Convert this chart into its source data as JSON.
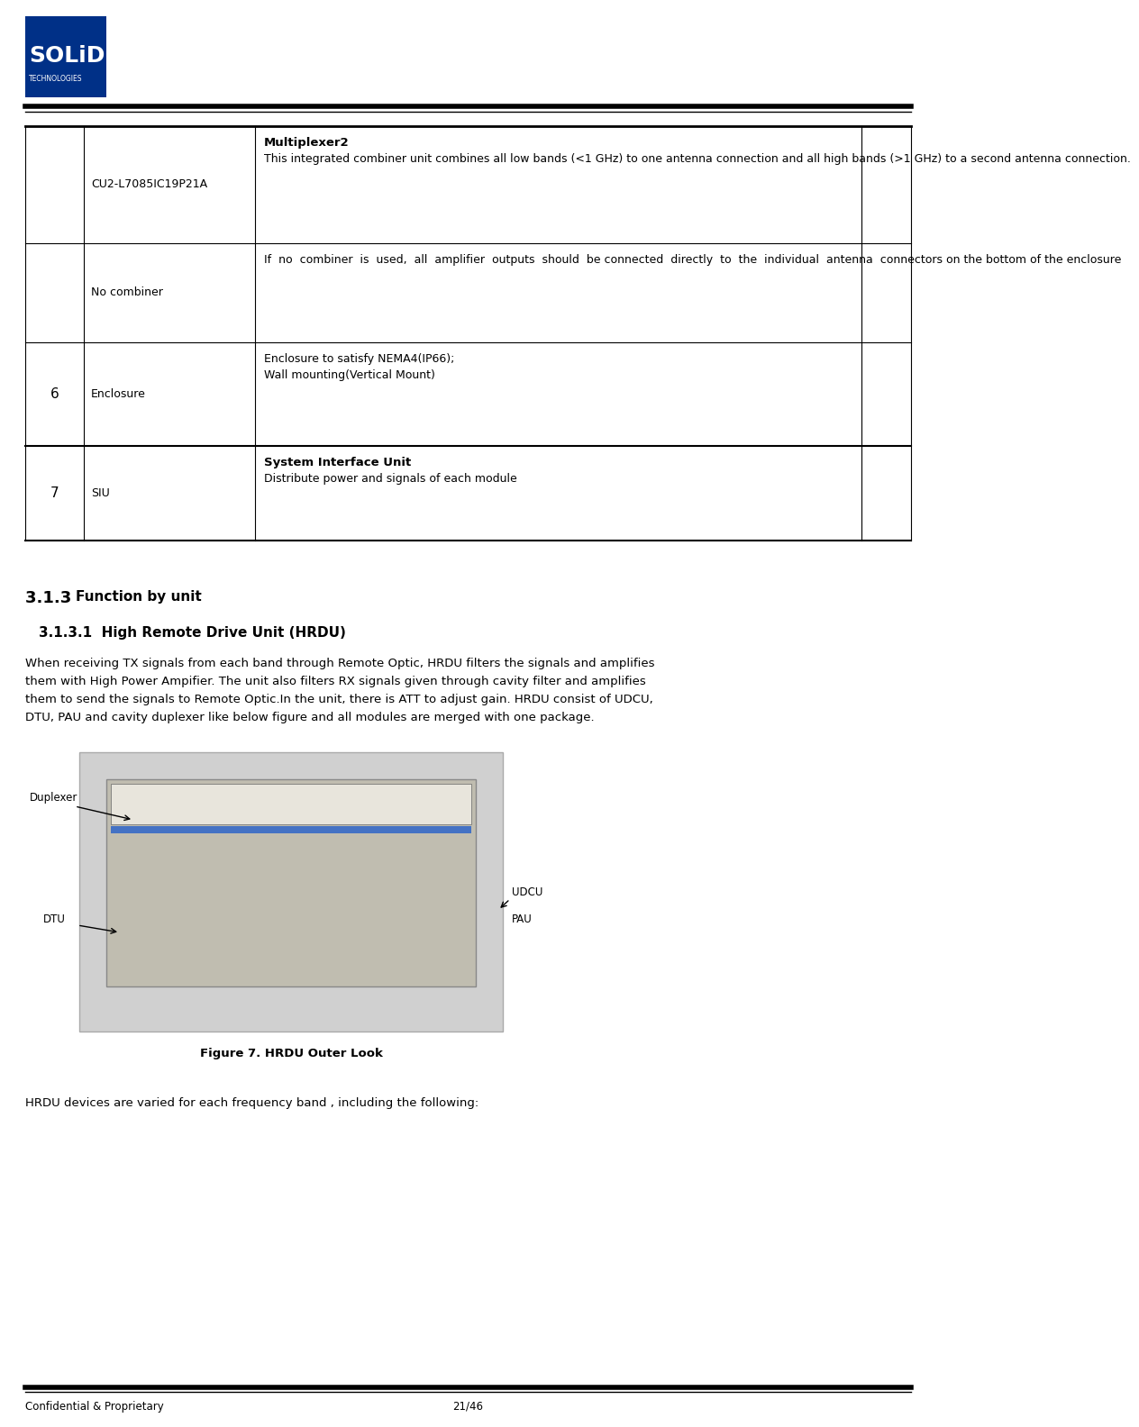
{
  "bg_color": "#ffffff",
  "logo_blue": "#003087",
  "header_line_color": "#000000",
  "footer_line_color": "#000000",
  "text_color": "#000000",
  "table_line_color": "#000000",
  "section_heading": "3.1.3 Function by unit",
  "subsection_heading": "3.1.3.1  High Remote Drive Unit (HRDU)",
  "body_text": "When receiving TX signals from each band through Remote Optic, HRDU filters the signals and amplifies them with High Power Ampifier. The unit also filters RX signals given through cavity filter and amplifies them to send the signals to Remote Optic.In the unit, there is ATT to adjust gain. HRDU consist of UDCU, DTU, PAU and cavity duplexer like below figure and all modules are merged with one package.",
  "figure_caption": "Figure 7. HRDU Outer Look",
  "footer_left": "Confidential & Proprietary",
  "footer_right": "21/46",
  "last_line": "HRDU devices are varied for each frequency band , including the following:",
  "table": {
    "rows": [
      {
        "num": "",
        "col2": "CU2-L7085IC19P21A",
        "col3_title": "Multiplexer2",
        "col3_body": "This integrated combiner unit combines all low bands (<1 GHz) to one antenna connection and all high bands (>1 GHz) to a second antenna connection.",
        "col4": ""
      },
      {
        "num": "",
        "col2": "No combiner",
        "col3_title": "",
        "col3_body": "If  no  combiner  is  used,  all  amplifier  outputs  should  be connected  directly  to  the  individual  antenna  connectors on the bottom of the enclosure",
        "col4": ""
      },
      {
        "num": "6",
        "col2": "Enclosure",
        "col3_title": "",
        "col3_body": "Enclosure to satisfy NEMA4(IP66);\nWall mounting(Vertical Mount)",
        "col4": ""
      },
      {
        "num": "7",
        "col2": "SIU",
        "col3_title": "System Interface Unit",
        "col3_body": "Distribute power and signals of each module",
        "col4": ""
      }
    ]
  },
  "duplexer_label": "Duplexer",
  "dtu_label": "DTU",
  "udcu_label": "UDCU",
  "pau_label": "PAU"
}
